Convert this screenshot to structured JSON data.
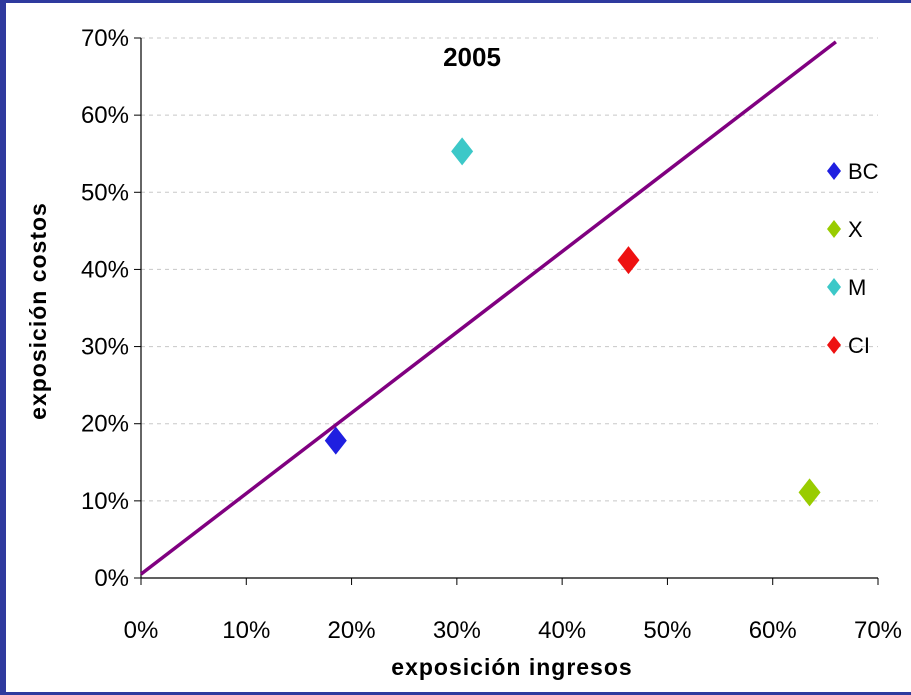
{
  "chart_data": {
    "type": "scatter",
    "title": "2005",
    "xlabel": "exposición ingresos",
    "ylabel": "exposición costos",
    "xlim": [
      0,
      0.7
    ],
    "ylim": [
      0,
      0.7
    ],
    "x_ticks": [
      "0%",
      "10%",
      "20%",
      "30%",
      "40%",
      "50%",
      "60%",
      "70%"
    ],
    "y_ticks": [
      "0%",
      "10%",
      "20%",
      "30%",
      "40%",
      "50%",
      "60%",
      "70%"
    ],
    "grid": "horizontal-dashed",
    "legend_position": "right",
    "series": [
      {
        "name": "BC",
        "color": "#1f1fe0",
        "x": [
          0.185
        ],
        "y": [
          0.178
        ]
      },
      {
        "name": "X",
        "color": "#99cc00",
        "x": [
          0.635
        ],
        "y": [
          0.111
        ]
      },
      {
        "name": "M",
        "color": "#3cc8c8",
        "x": [
          0.305
        ],
        "y": [
          0.553
        ]
      },
      {
        "name": "CI",
        "color": "#ee1111",
        "x": [
          0.463
        ],
        "y": [
          0.412
        ]
      }
    ],
    "reference_line": {
      "x": [
        0.0,
        0.66
      ],
      "y": [
        0.005,
        0.695
      ],
      "color": "#800080"
    }
  }
}
